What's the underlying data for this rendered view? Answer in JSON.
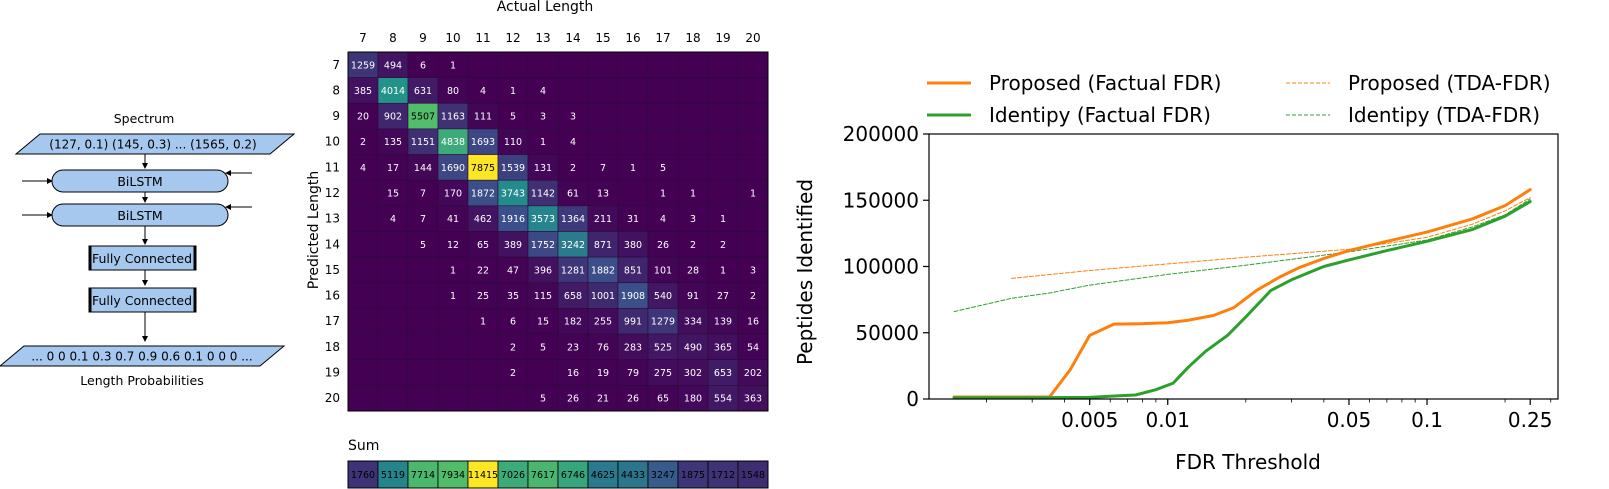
{
  "diagram": {
    "input_label": "Spectrum",
    "input_value": "(127, 0.1) (145, 0.3) ... (1565, 0.2)",
    "layers": [
      "BiLSTM",
      "BiLSTM",
      "Fully Connected",
      "Fully Connected"
    ],
    "output_value": "... 0 0 0.1 0.3 0.7 0.9 0.6 0.1 0 0 0 ...",
    "output_label": "Length Probabilities"
  },
  "chart_data": [
    {
      "type": "heatmap",
      "title": "",
      "xlabel": "Actual Length",
      "ylabel": "Predicted Length",
      "x_categories": [
        "7",
        "8",
        "9",
        "10",
        "11",
        "12",
        "13",
        "14",
        "15",
        "16",
        "17",
        "18",
        "19",
        "20"
      ],
      "y_categories": [
        "7",
        "8",
        "9",
        "10",
        "11",
        "12",
        "13",
        "14",
        "15",
        "16",
        "17",
        "18",
        "19",
        "20"
      ],
      "colormap": [
        "#440154",
        "#3b528b",
        "#21918c",
        "#5ec962",
        "#fde725"
      ],
      "values": [
        [
          1259,
          494,
          6,
          1,
          null,
          null,
          null,
          null,
          null,
          null,
          null,
          null,
          null,
          null
        ],
        [
          385,
          4014,
          631,
          80,
          4,
          1,
          4,
          null,
          null,
          null,
          null,
          null,
          null,
          null
        ],
        [
          20,
          902,
          5507,
          1163,
          111,
          5,
          3,
          3,
          null,
          null,
          null,
          null,
          null,
          null
        ],
        [
          2,
          135,
          1151,
          4838,
          1693,
          110,
          1,
          4,
          null,
          null,
          null,
          null,
          null,
          null
        ],
        [
          4,
          17,
          144,
          1690,
          7875,
          1539,
          131,
          2,
          7,
          1,
          5,
          null,
          null,
          null
        ],
        [
          null,
          15,
          7,
          170,
          1872,
          3743,
          1142,
          61,
          13,
          null,
          1,
          1,
          null,
          1
        ],
        [
          null,
          4,
          7,
          41,
          462,
          1916,
          3573,
          1364,
          211,
          31,
          4,
          3,
          1,
          null
        ],
        [
          null,
          null,
          5,
          12,
          65,
          389,
          1752,
          3242,
          871,
          380,
          26,
          2,
          2,
          null
        ],
        [
          null,
          null,
          null,
          1,
          22,
          47,
          396,
          1281,
          1882,
          851,
          101,
          28,
          1,
          3
        ],
        [
          null,
          null,
          null,
          1,
          25,
          35,
          115,
          658,
          1001,
          1908,
          540,
          91,
          27,
          2
        ],
        [
          null,
          null,
          null,
          null,
          1,
          6,
          15,
          182,
          255,
          991,
          1279,
          334,
          139,
          16
        ],
        [
          null,
          null,
          null,
          null,
          null,
          2,
          5,
          23,
          76,
          283,
          525,
          490,
          365,
          54
        ],
        [
          null,
          null,
          null,
          null,
          null,
          2,
          null,
          16,
          19,
          79,
          275,
          302,
          653,
          202
        ],
        [
          null,
          null,
          null,
          null,
          null,
          null,
          5,
          26,
          21,
          26,
          65,
          180,
          554,
          363
        ]
      ],
      "sum_label": "Sum",
      "sums": [
        1760,
        5119,
        7714,
        7934,
        11415,
        7026,
        7617,
        6746,
        4625,
        4433,
        3247,
        1875,
        1712,
        1548
      ]
    },
    {
      "type": "line",
      "title": "",
      "xlabel": "FDR Threshold",
      "ylabel": "Peptides Identified",
      "x_scale": "log",
      "xlim": [
        0.0012,
        0.32
      ],
      "ylim": [
        0,
        200000
      ],
      "x_ticks": [
        0.005,
        0.01,
        0.05,
        0.1,
        0.25
      ],
      "x_tick_labels": [
        "0.005",
        "0.01",
        "0.05",
        "0.1",
        "0.25"
      ],
      "y_ticks": [
        0,
        50000,
        100000,
        150000,
        200000
      ],
      "y_tick_labels": [
        "0",
        "50000",
        "100000",
        "150000",
        "200000"
      ],
      "legend_position": "top",
      "series": [
        {
          "name": "Proposed (Factual FDR)",
          "color": "#ff7f0e",
          "style": "solid",
          "x": [
            0.0015,
            0.0035,
            0.0042,
            0.005,
            0.0062,
            0.008,
            0.01,
            0.012,
            0.015,
            0.018,
            0.022,
            0.027,
            0.032,
            0.04,
            0.05,
            0.07,
            0.1,
            0.15,
            0.2,
            0.25
          ],
          "y": [
            1500,
            1500,
            22000,
            48000,
            56500,
            56800,
            57500,
            59500,
            63000,
            69000,
            82000,
            92000,
            99000,
            106000,
            112000,
            119000,
            126000,
            136000,
            146000,
            158000
          ]
        },
        {
          "name": "Identipy (Factual FDR)",
          "color": "#2ca02c",
          "style": "solid",
          "x": [
            0.0015,
            0.003,
            0.005,
            0.0065,
            0.0075,
            0.009,
            0.0105,
            0.012,
            0.014,
            0.017,
            0.02,
            0.025,
            0.03,
            0.04,
            0.05,
            0.07,
            0.1,
            0.15,
            0.2,
            0.25
          ],
          "y": [
            1000,
            1000,
            1200,
            2500,
            3000,
            7000,
            12000,
            24000,
            36000,
            48000,
            62000,
            82000,
            90000,
            100000,
            105000,
            112000,
            119000,
            128000,
            138000,
            149000
          ]
        },
        {
          "name": "Proposed (TDA-FDR)",
          "color": "#ff7f0e",
          "style": "dashed",
          "x": [
            0.0025,
            0.005,
            0.01,
            0.02,
            0.05,
            0.1,
            0.15,
            0.2,
            0.25
          ],
          "y": [
            91000,
            97000,
            102000,
            107000,
            113000,
            122000,
            132000,
            142000,
            152000
          ]
        },
        {
          "name": "Identipy (TDA-FDR)",
          "color": "#2ca02c",
          "style": "dashed",
          "x": [
            0.0015,
            0.0025,
            0.0035,
            0.005,
            0.01,
            0.02,
            0.05,
            0.1,
            0.15,
            0.2,
            0.25
          ],
          "y": [
            66000,
            76000,
            80000,
            86000,
            94000,
            101000,
            111000,
            120000,
            130000,
            139000,
            151000
          ]
        }
      ]
    }
  ]
}
